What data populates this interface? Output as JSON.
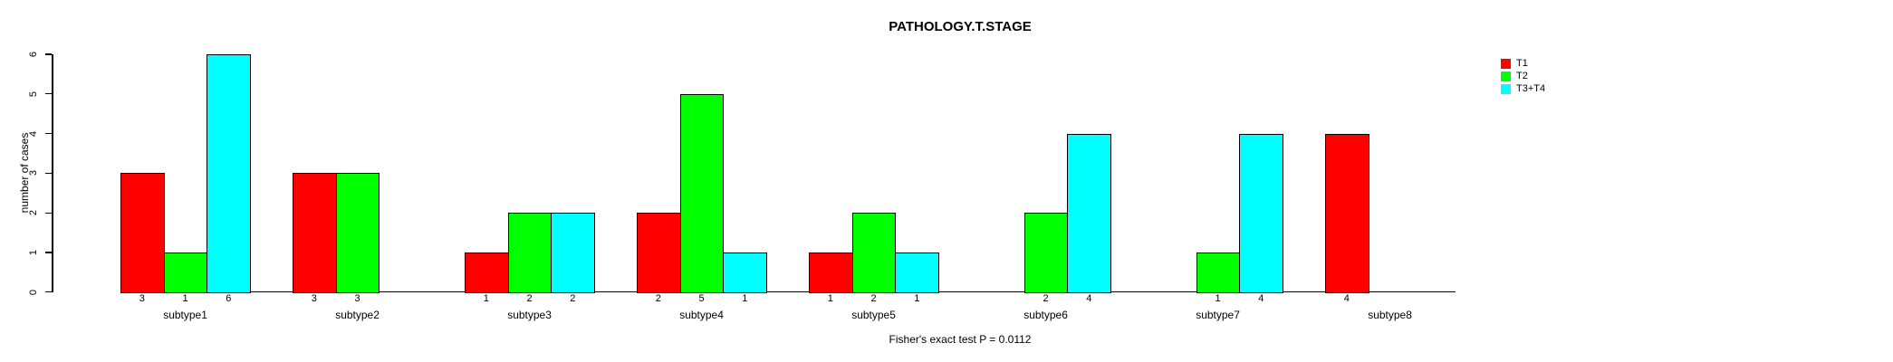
{
  "chart_data": {
    "type": "bar",
    "grouped": true,
    "title": "PATHOLOGY.T.STAGE",
    "xlabel": "",
    "ylabel": "number of cases",
    "ylim": [
      0,
      6
    ],
    "yticks": [
      0,
      1,
      2,
      3,
      4,
      5,
      6
    ],
    "grid": false,
    "legend_position": "top-right",
    "categories": [
      "subtype1",
      "subtype2",
      "subtype3",
      "subtype4",
      "subtype5",
      "subtype6",
      "subtype7",
      "subtype8"
    ],
    "series": [
      {
        "name": "T1",
        "color": "#FF0000",
        "values": [
          3,
          3,
          1,
          2,
          1,
          0,
          0,
          4
        ]
      },
      {
        "name": "T2",
        "color": "#00FF00",
        "values": [
          1,
          3,
          2,
          5,
          2,
          2,
          1,
          0
        ]
      },
      {
        "name": "T3+T4",
        "color": "#00FFFF",
        "values": [
          6,
          0,
          2,
          1,
          1,
          4,
          4,
          0
        ]
      }
    ],
    "bar_value_labels": "values shown under each bar, omitted when value is 0",
    "annotation": "Fisher's exact test P = 0.0112"
  }
}
